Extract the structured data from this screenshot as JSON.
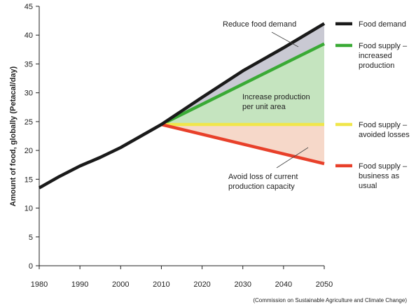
{
  "chart_data": {
    "type": "line",
    "ylabel": "Amount of food, globally (Petacal/day)",
    "xlim": [
      1980,
      2050
    ],
    "ylim": [
      0,
      45
    ],
    "x_ticks": [
      1980,
      1990,
      2000,
      2010,
      2020,
      2030,
      2040,
      2050
    ],
    "y_ticks": [
      0,
      5,
      10,
      15,
      20,
      25,
      30,
      35,
      40,
      45
    ],
    "grid": false,
    "legend_position": "right",
    "series": [
      {
        "name": "Food demand",
        "color": "#1a1a1a",
        "points": [
          [
            1980,
            13.5
          ],
          [
            1985,
            15.5
          ],
          [
            1990,
            17.3
          ],
          [
            1995,
            18.8
          ],
          [
            2000,
            20.5
          ],
          [
            2005,
            22.5
          ],
          [
            2010,
            24.5
          ],
          [
            2020,
            29.2
          ],
          [
            2030,
            33.8
          ],
          [
            2040,
            37.8
          ],
          [
            2050,
            42.0
          ]
        ]
      },
      {
        "name": "Food supply – increased production",
        "color": "#3aaa35",
        "points": [
          [
            2010,
            24.5
          ],
          [
            2050,
            38.5
          ]
        ]
      },
      {
        "name": "Food supply – avoided losses",
        "color": "#f0e64a",
        "points": [
          [
            2010,
            24.5
          ],
          [
            2050,
            24.5
          ]
        ]
      },
      {
        "name": "Food supply – business as usual",
        "color": "#e8402a",
        "points": [
          [
            2010,
            24.5
          ],
          [
            2050,
            17.7
          ]
        ]
      }
    ],
    "areas": [
      {
        "name": "reduce-demand-area",
        "color": "#c9c9d3",
        "between": [
          "Food demand",
          "Food supply – increased production"
        ]
      },
      {
        "name": "increase-production-area",
        "color": "#c5e4bf",
        "between": [
          "Food supply – increased production",
          "Food supply – avoided losses"
        ]
      },
      {
        "name": "avoid-loss-area",
        "color": "#f6d8c9",
        "between": [
          "Food supply – avoided losses",
          "Food supply – business as usual"
        ]
      }
    ],
    "annotations": [
      {
        "lines": [
          "Reduce food demand"
        ]
      },
      {
        "lines": [
          "Increase production",
          "per unit area"
        ]
      },
      {
        "lines": [
          "Avoid loss of current",
          "production capacity"
        ]
      }
    ],
    "legend": [
      {
        "lines": [
          "Food demand"
        ],
        "color": "#1a1a1a"
      },
      {
        "lines": [
          "Food supply –",
          "increased",
          "production"
        ],
        "color": "#3aaa35"
      },
      {
        "lines": [
          "Food supply –",
          "avoided losses"
        ],
        "color": "#f0e64a"
      },
      {
        "lines": [
          "Food supply –",
          "business as",
          "usual"
        ],
        "color": "#e8402a"
      }
    ],
    "source": "(Commission on Sustainable Agriculture and Climate Change)"
  }
}
